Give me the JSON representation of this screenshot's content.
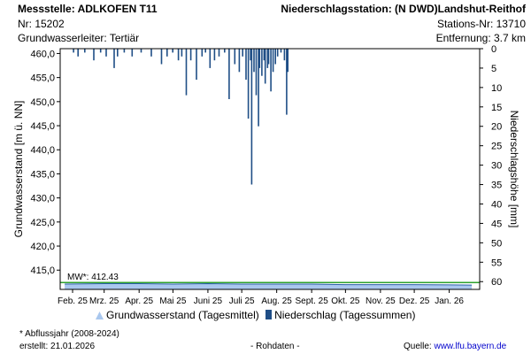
{
  "header": {
    "station": "Messstelle: ADLKOFEN T11",
    "nr": "Nr: 15202",
    "aquifer": "Grundwasserleiter: Tertiär",
    "precip_station": "Niederschlagsstation: (N DWD)Landshut-Reithof",
    "station_nr": "Stations-Nr: 13710",
    "distance": "Entfernung: 3.7 km"
  },
  "colors": {
    "groundwater_fill": "#a9c7ee",
    "groundwater_line": "#2b5fa8",
    "precip_bar": "#1f4e86",
    "mean_line": "#2ea12e"
  },
  "chart_data": {
    "type": "bar",
    "xlabels": [
      "Feb. 25",
      "Mrz. 25",
      "Apr. 25",
      "Mai 25",
      "Juni 25",
      "Juli 25",
      "Aug. 25",
      "Sept. 25",
      "Okt. 25",
      "Nov. 25",
      "Dez. 25",
      "Jan. 26"
    ],
    "ylabel_left": "Grundwasserstand [m ü. NN]",
    "ylabel_right": "Niederschlagshöhe [mm]",
    "ylim_left": [
      411.0,
      461.0
    ],
    "yticks_left": [
      "460,0",
      "455,0",
      "450,0",
      "445,0",
      "440,0",
      "435,0",
      "430,0",
      "425,0",
      "420,0",
      "415,0"
    ],
    "ylim_right": [
      0,
      62
    ],
    "yticks_right": [
      "0",
      "5",
      "10",
      "15",
      "20",
      "25",
      "30",
      "35",
      "40",
      "45",
      "50",
      "55",
      "60"
    ],
    "mean": {
      "label": "MW*: 412.43",
      "value": 412.43
    },
    "groundwater": [
      [
        "2025-01-25",
        412.1
      ],
      [
        "2025-03-01",
        412.2
      ],
      [
        "2025-04-01",
        412.2
      ],
      [
        "2025-05-01",
        412.1
      ],
      [
        "2025-06-01",
        412.2
      ],
      [
        "2025-07-01",
        412.1
      ],
      [
        "2025-08-01",
        412.1
      ],
      [
        "2025-09-01",
        412.1
      ],
      [
        "2025-10-01",
        412.0
      ],
      [
        "2025-11-01",
        412.0
      ],
      [
        "2025-12-01",
        412.0
      ],
      [
        "2026-01-21",
        411.9
      ]
    ],
    "precipitation": [
      [
        "2025-02-02",
        1
      ],
      [
        "2025-02-06",
        2
      ],
      [
        "2025-02-12",
        1
      ],
      [
        "2025-02-20",
        3
      ],
      [
        "2025-02-26",
        1
      ],
      [
        "2025-03-03",
        2
      ],
      [
        "2025-03-10",
        5
      ],
      [
        "2025-03-13",
        2
      ],
      [
        "2025-03-19",
        1
      ],
      [
        "2025-03-26",
        2
      ],
      [
        "2025-04-03",
        1
      ],
      [
        "2025-04-12",
        2
      ],
      [
        "2025-04-21",
        4
      ],
      [
        "2025-04-26",
        2
      ],
      [
        "2025-05-01",
        1
      ],
      [
        "2025-05-06",
        3
      ],
      [
        "2025-05-09",
        2
      ],
      [
        "2025-05-13",
        12
      ],
      [
        "2025-05-17",
        3
      ],
      [
        "2025-05-22",
        8
      ],
      [
        "2025-05-27",
        2
      ],
      [
        "2025-05-30",
        1
      ],
      [
        "2025-06-03",
        5
      ],
      [
        "2025-06-07",
        3
      ],
      [
        "2025-06-11",
        2
      ],
      [
        "2025-06-16",
        1
      ],
      [
        "2025-06-20",
        13
      ],
      [
        "2025-06-25",
        4
      ],
      [
        "2025-06-29",
        6
      ],
      [
        "2025-07-02",
        2
      ],
      [
        "2025-07-05",
        8
      ],
      [
        "2025-07-07",
        18
      ],
      [
        "2025-07-09",
        3
      ],
      [
        "2025-07-10",
        35
      ],
      [
        "2025-07-12",
        6
      ],
      [
        "2025-07-14",
        12
      ],
      [
        "2025-07-16",
        20
      ],
      [
        "2025-07-17",
        5
      ],
      [
        "2025-07-19",
        7
      ],
      [
        "2025-07-21",
        3
      ],
      [
        "2025-07-22",
        9
      ],
      [
        "2025-07-24",
        5
      ],
      [
        "2025-07-25",
        4
      ],
      [
        "2025-07-27",
        11
      ],
      [
        "2025-07-29",
        6
      ],
      [
        "2025-07-31",
        4
      ],
      [
        "2025-08-02",
        2
      ],
      [
        "2025-08-05",
        1
      ],
      [
        "2025-08-08",
        3
      ],
      [
        "2025-08-10",
        17
      ],
      [
        "2025-08-11",
        6
      ]
    ]
  },
  "legend": {
    "groundwater": "Grundwasserstand (Tagesmittel)",
    "precip": "Niederschlag (Tagessummen)"
  },
  "footer": {
    "note": "* Abflussjahr (2008-2024)",
    "created": "erstellt:  21.01.2026",
    "raw": "- Rohdaten -",
    "source_label": "Quelle: ",
    "source_url": "www.lfu.bayern.de"
  }
}
